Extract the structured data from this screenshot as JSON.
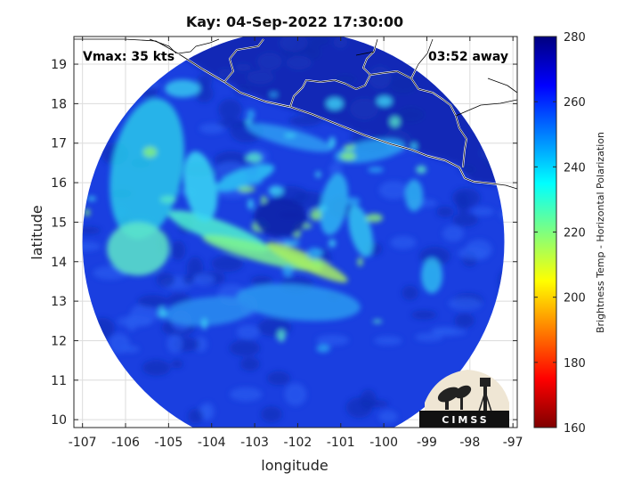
{
  "title": "Kay: 04-Sep-2022 17:30:00",
  "annotations": {
    "vmax": "Vmax: 35 kts",
    "time_away": "03:52 away"
  },
  "logo": {
    "text": "CIMSS"
  },
  "chart_data": {
    "type": "heatmap",
    "xlabel": "longitude",
    "ylabel": "latitude",
    "xlim": [
      -107.2,
      -96.9
    ],
    "ylim": [
      9.8,
      19.7
    ],
    "x_ticks": [
      -107,
      -106,
      -105,
      -104,
      -103,
      -102,
      -101,
      -100,
      -99,
      -98,
      -97
    ],
    "y_ticks": [
      10,
      11,
      12,
      13,
      14,
      15,
      16,
      17,
      18,
      19
    ],
    "x_tick_labels": [
      "-107",
      "-106",
      "-105",
      "-104",
      "-103",
      "-102",
      "-101",
      "-100",
      "-99",
      "-98",
      "-97"
    ],
    "y_tick_labels": [
      "10",
      "11",
      "12",
      "13",
      "14",
      "15",
      "16",
      "17",
      "18",
      "19"
    ],
    "grid": true,
    "colorbar": {
      "label": "Brightness Temp - Horizontal Polarization",
      "range": [
        160,
        280
      ],
      "ticks": [
        160,
        180,
        200,
        220,
        240,
        260,
        280
      ],
      "tick_labels": [
        "160",
        "180",
        "200",
        "220",
        "240",
        "260",
        "280"
      ],
      "colormap": "jet"
    },
    "swath": {
      "center": [
        -102.1,
        14.5
      ],
      "radius_deg": 4.9
    },
    "storm_center": [
      -102.4,
      15.0
    ],
    "coastline_color": "#ffffff"
  }
}
